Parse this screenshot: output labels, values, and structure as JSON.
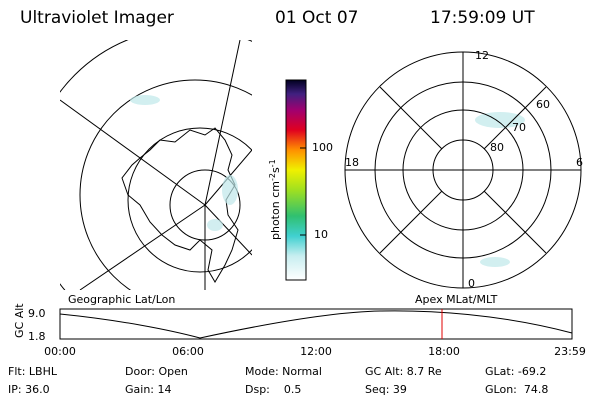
{
  "header": {
    "instrument": "Ultraviolet Imager",
    "date": "01 Oct 07",
    "time": "17:59:09 UT"
  },
  "colorbar": {
    "label": "photon cm",
    "exp1": "-2",
    "unit2": "s",
    "exp2": "-1",
    "ticks": [
      "100",
      "10"
    ]
  },
  "polar_plot": {
    "mlt_labels": {
      "top": "12",
      "left": "18",
      "right": "6",
      "bottom": "0"
    },
    "lat_labels": [
      "60",
      "70",
      "80"
    ]
  },
  "orbit_plot": {
    "left_title": "Geographic Lat/Lon",
    "right_title": "Apex MLat/MLT",
    "y_label": "GC Alt",
    "y_ticks": [
      "9.0",
      "1.8"
    ],
    "x_ticks": [
      "00:00",
      "06:00",
      "12:00",
      "18:00",
      "23:59"
    ]
  },
  "info": {
    "rows": [
      [
        "Flt: LBHL",
        "Door: Open",
        "Mode: Normal",
        "GC Alt: 8.7 Re",
        "GLat: -69.2"
      ],
      [
        "IP: 36.0",
        "Gain: 14",
        "Dsp:    0.5",
        "Seq: 39",
        "GLon:  74.8"
      ]
    ]
  }
}
